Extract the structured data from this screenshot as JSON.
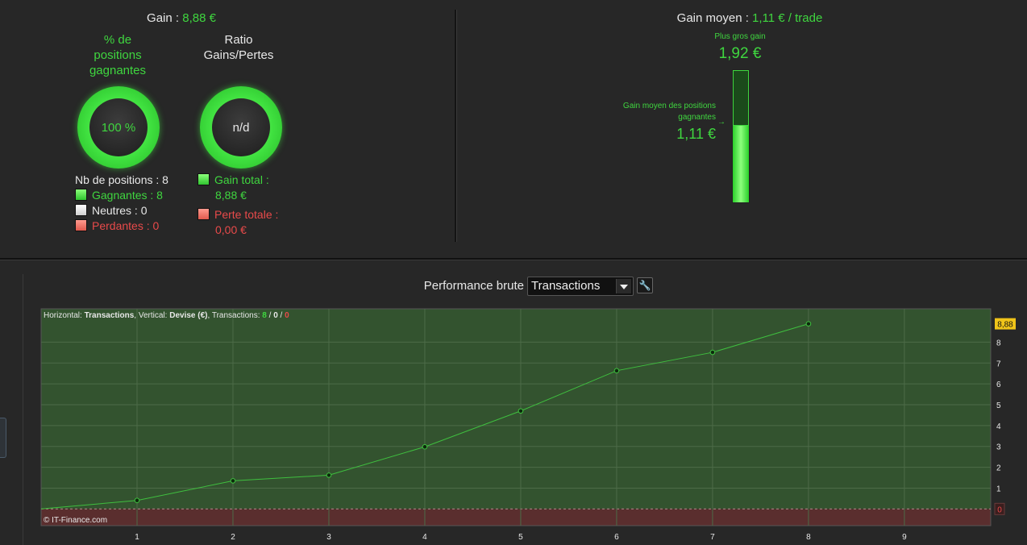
{
  "summary": {
    "gain_label": "Gain :",
    "gain_value": "8,88 €",
    "pct_title": "% de\npositions\ngagnantes",
    "pct_value": "100 %",
    "ratio_title": "Ratio\nGains/Pertes",
    "ratio_value": "n/d",
    "nb_positions": "Nb de positions : 8",
    "gagnantes": "Gagnantes : 8",
    "neutres": "Neutres : 0",
    "perdantes": "Perdantes : 0",
    "gain_total_label": "Gain total :",
    "gain_total_value": "8,88 €",
    "perte_totale_label": "Perte totale :",
    "perte_totale_value": "0,00 €",
    "win_pct": 100
  },
  "gain_moyen": {
    "label": "Gain moyen :",
    "value": "1,11 € / trade",
    "max_label": "Plus gros gain",
    "max_value": "1,92 €",
    "avg_label": "Gain moyen des positions gagnantes",
    "avg_value": "1,11 €",
    "max_amount": 1.92,
    "avg_amount": 1.11
  },
  "performance": {
    "title": "Performance brute",
    "select_value": "Transactions",
    "info_horizontal_label": "Horizontal:",
    "info_horizontal_value": "Transactions",
    "info_vertical_label": ", Vertical:",
    "info_vertical_value": "Devise (€)",
    "info_trans_label": ", Transactions:",
    "info_win": "8",
    "info_sep1": " / ",
    "info_neutral": "0",
    "info_sep2": " / ",
    "info_loss": "0",
    "copyright": "© IT-Finance.com"
  },
  "chart_data": {
    "type": "line",
    "xlabel": "",
    "ylabel": "",
    "x": [
      0,
      1,
      2,
      3,
      4,
      5,
      6,
      7,
      8
    ],
    "values": [
      0,
      0.41,
      1.35,
      1.62,
      2.98,
      4.7,
      6.63,
      7.51,
      8.88
    ],
    "x_ticks": [
      "1",
      "2",
      "3",
      "4",
      "5",
      "6",
      "7",
      "8",
      "9"
    ],
    "y_ticks": [
      "1",
      "2",
      "3",
      "4",
      "5",
      "6",
      "7",
      "8"
    ],
    "last_value_label": "8,88",
    "zero_label": "0",
    "xlim": [
      0,
      9.9
    ],
    "ylim": [
      -0.8,
      9.6
    ],
    "grid": true,
    "colors": {
      "positive_bg": "#33532f",
      "negative_bg": "#5a2e2e",
      "line": "#3fbf3f",
      "label_bg": "#f0c419"
    }
  }
}
